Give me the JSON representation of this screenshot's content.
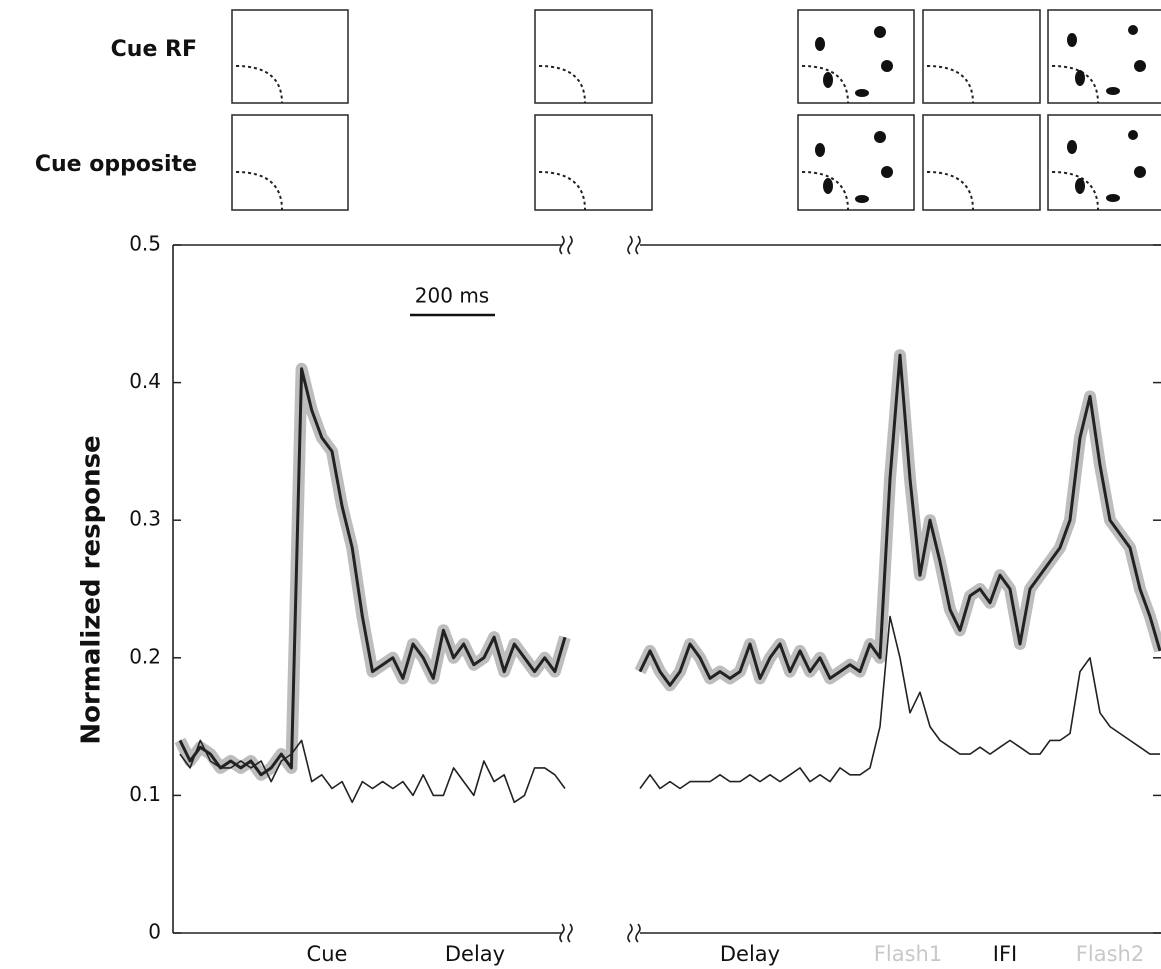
{
  "chart_data": {
    "type": "line",
    "ylabel": "Normalized response",
    "ylim": [
      0,
      0.5
    ],
    "yticks": [
      0,
      0.1,
      0.2,
      0.3,
      0.4,
      0.5
    ],
    "scale_bar_label": "200 ms",
    "row_labels": [
      "Cue RF",
      "Cue opposite"
    ],
    "panels": [
      {
        "categories": [
          "Cue",
          "Delay"
        ],
        "series": [
          {
            "color": "#222222",
            "line_width": 3,
            "error_band": true,
            "values": [
              0.14,
              0.125,
              0.135,
              0.13,
              0.12,
              0.125,
              0.12,
              0.125,
              0.115,
              0.12,
              0.13,
              0.12,
              0.41,
              0.38,
              0.36,
              0.35,
              0.31,
              0.28,
              0.23,
              0.19,
              0.195,
              0.2,
              0.185,
              0.21,
              0.2,
              0.185,
              0.22,
              0.2,
              0.21,
              0.195,
              0.2,
              0.215,
              0.19,
              0.21,
              0.2,
              0.19,
              0.2,
              0.19,
              0.215
            ]
          },
          {
            "color": "#222222",
            "line_width": 1.6,
            "error_band": false,
            "values": [
              0.13,
              0.12,
              0.14,
              0.125,
              0.12,
              0.12,
              0.125,
              0.12,
              0.125,
              0.11,
              0.125,
              0.13,
              0.14,
              0.11,
              0.115,
              0.105,
              0.11,
              0.095,
              0.11,
              0.105,
              0.11,
              0.105,
              0.11,
              0.1,
              0.115,
              0.1,
              0.1,
              0.12,
              0.11,
              0.1,
              0.125,
              0.11,
              0.115,
              0.095,
              0.1,
              0.12,
              0.12,
              0.115,
              0.105
            ]
          }
        ]
      },
      {
        "categories": [
          "Delay",
          "Flash1",
          "IFI",
          "Flash2"
        ],
        "series": [
          {
            "color": "#222222",
            "line_width": 3,
            "error_band": true,
            "values": [
              0.19,
              0.205,
              0.19,
              0.18,
              0.19,
              0.21,
              0.2,
              0.185,
              0.19,
              0.185,
              0.19,
              0.21,
              0.185,
              0.2,
              0.21,
              0.19,
              0.205,
              0.19,
              0.2,
              0.185,
              0.19,
              0.195,
              0.19,
              0.21,
              0.2,
              0.33,
              0.42,
              0.33,
              0.26,
              0.3,
              0.27,
              0.235,
              0.22,
              0.245,
              0.25,
              0.24,
              0.26,
              0.25,
              0.21,
              0.25,
              0.26,
              0.27,
              0.28,
              0.3,
              0.36,
              0.39,
              0.34,
              0.3,
              0.29,
              0.28,
              0.25,
              0.23,
              0.205
            ]
          },
          {
            "color": "#222222",
            "line_width": 1.6,
            "error_band": false,
            "values": [
              0.105,
              0.115,
              0.105,
              0.11,
              0.105,
              0.11,
              0.11,
              0.11,
              0.115,
              0.11,
              0.11,
              0.115,
              0.11,
              0.115,
              0.11,
              0.115,
              0.12,
              0.11,
              0.115,
              0.11,
              0.12,
              0.115,
              0.115,
              0.12,
              0.15,
              0.23,
              0.2,
              0.16,
              0.175,
              0.15,
              0.14,
              0.135,
              0.13,
              0.13,
              0.135,
              0.13,
              0.135,
              0.14,
              0.135,
              0.13,
              0.13,
              0.14,
              0.14,
              0.145,
              0.19,
              0.2,
              0.16,
              0.15,
              0.145,
              0.14,
              0.135,
              0.13,
              0.13
            ]
          }
        ]
      }
    ]
  }
}
